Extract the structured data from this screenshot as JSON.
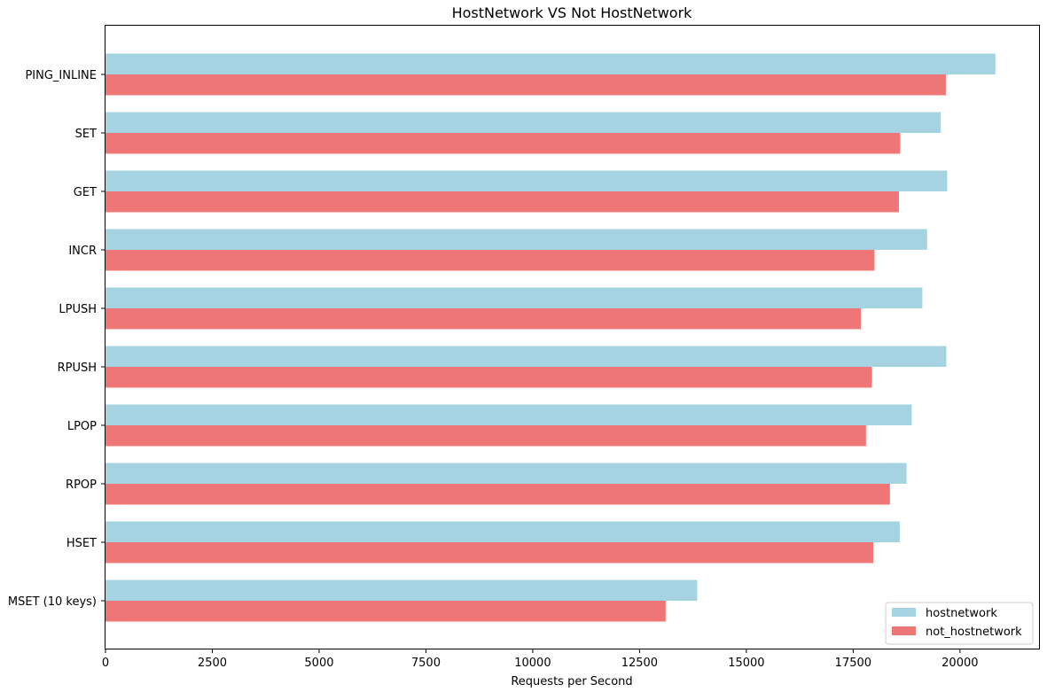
{
  "chart_data": {
    "type": "bar",
    "orientation": "horizontal",
    "title": "HostNetwork VS Not HostNetwork",
    "xlabel": "Requests per Second",
    "ylabel": "",
    "categories": [
      "PING_INLINE",
      "SET",
      "GET",
      "INCR",
      "LPUSH",
      "RPUSH",
      "LPOP",
      "RPOP",
      "HSET",
      "MSET (10 keys)"
    ],
    "series": [
      {
        "name": "hostnetwork",
        "color": "#a6d3e2",
        "values": [
          20830,
          19550,
          19700,
          19230,
          19120,
          19680,
          18870,
          18750,
          18590,
          13850
        ]
      },
      {
        "name": "not_hostnetwork",
        "color": "#ee7676",
        "values": [
          19670,
          18600,
          18570,
          18000,
          17680,
          17940,
          17800,
          18360,
          17970,
          13110
        ]
      }
    ],
    "xlim": [
      0,
      21850
    ],
    "xticks": [
      0,
      2500,
      5000,
      7500,
      10000,
      12500,
      15000,
      17500,
      20000
    ],
    "grid": false,
    "legend_position": "bottom-right"
  }
}
